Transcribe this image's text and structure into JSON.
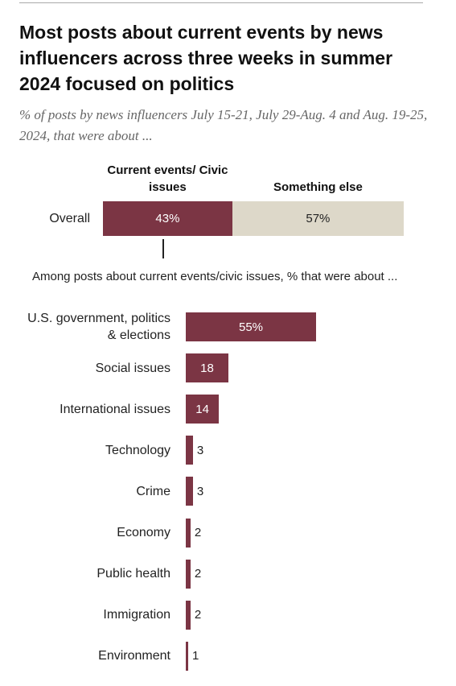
{
  "chart_data": [
    {
      "type": "stacked-bar",
      "title": "Most posts about current events by news influencers across three weeks in summer 2024 focused on politics",
      "subtitle": "% of posts by news influencers July 15-21, July 29-Aug. 4 and Aug. 19-25, 2024, that were about ...",
      "categories": [
        "Overall"
      ],
      "series": [
        {
          "name": "Current events/ Civic issues",
          "color": "#7b3544",
          "values": [
            43
          ],
          "value_labels": [
            "43%"
          ]
        },
        {
          "name": "Something else",
          "color": "#ddd8c9",
          "values": [
            57
          ],
          "value_labels": [
            "57%"
          ]
        }
      ]
    },
    {
      "type": "bar",
      "subtitle": "Among posts about current events/civic issues, % that were about ...",
      "categories": [
        "U.S. government, politics & elections",
        "Social issues",
        "International issues",
        "Technology",
        "Crime",
        "Economy",
        "Public health",
        "Immigration",
        "Environment"
      ],
      "values": [
        55,
        18,
        14,
        3,
        3,
        2,
        2,
        2,
        1
      ],
      "value_labels": [
        "55%",
        "18",
        "14",
        "3",
        "3",
        "2",
        "2",
        "2",
        "1"
      ],
      "color": "#7b3544"
    }
  ]
}
